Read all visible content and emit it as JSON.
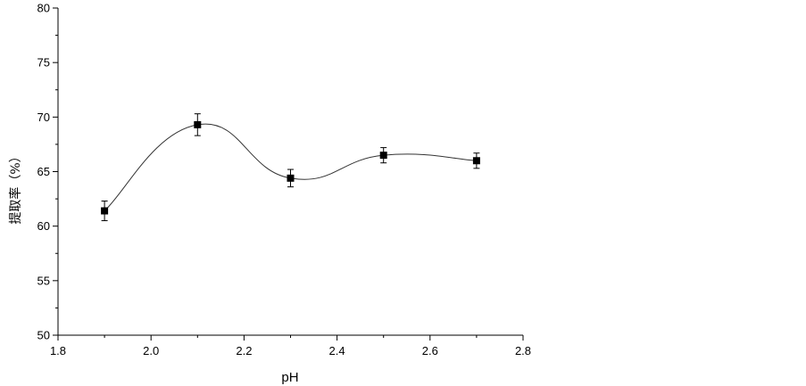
{
  "chart_data": {
    "type": "scatter",
    "title": "",
    "xlabel": "pH",
    "ylabel": "提取率（%）",
    "xlim": [
      1.8,
      2.8
    ],
    "ylim": [
      50,
      80
    ],
    "x_ticks": [
      "1.8",
      "2.0",
      "2.2",
      "2.4",
      "2.6",
      "2.8"
    ],
    "y_ticks": [
      "50",
      "55",
      "60",
      "65",
      "70",
      "75",
      "80"
    ],
    "grid": false,
    "legend": "none",
    "smooth_curve": true,
    "series": [
      {
        "x": [
          1.9,
          2.1,
          2.3,
          2.5,
          2.7
        ],
        "y": [
          61.4,
          69.3,
          64.4,
          66.5,
          66.0
        ],
        "error": [
          0.9,
          1.0,
          0.8,
          0.7,
          0.7
        ],
        "marker": "square",
        "color": "#000000"
      }
    ]
  }
}
